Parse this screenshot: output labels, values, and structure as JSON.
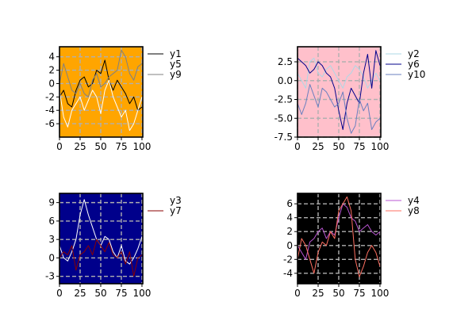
{
  "chart_data": [
    {
      "type": "line",
      "background": "#FFA500",
      "xlim": [
        0,
        101
      ],
      "ylim": [
        -8,
        5.5
      ],
      "xticks": [
        0,
        25,
        50,
        75,
        100
      ],
      "yticks": [
        -6,
        -4,
        -2,
        0,
        2,
        4
      ],
      "ytick_labels": [
        "-6",
        "-4",
        "-2",
        "0",
        "2",
        "4"
      ],
      "grid": true,
      "legend_position": "right",
      "series": [
        {
          "name": "y1",
          "color": "#000000",
          "x": [
            0,
            5,
            10,
            15,
            20,
            25,
            30,
            35,
            40,
            45,
            50,
            55,
            60,
            65,
            70,
            75,
            80,
            85,
            90,
            95,
            100
          ],
          "y": [
            -2,
            -1,
            -3,
            -3.5,
            -1,
            0.5,
            1,
            -0.5,
            0,
            2,
            1.5,
            3.5,
            0.5,
            -1,
            0.5,
            -0.5,
            -1.5,
            -3,
            -2,
            -4,
            -3.5
          ]
        },
        {
          "name": "y5",
          "color": "#ffffff",
          "x": [
            0,
            5,
            10,
            15,
            20,
            25,
            30,
            35,
            40,
            45,
            50,
            55,
            60,
            65,
            70,
            75,
            80,
            85,
            90,
            95,
            100
          ],
          "y": [
            -1,
            -5,
            -6.5,
            -4,
            -3,
            -2,
            -4,
            -2.5,
            -1,
            -2,
            -4.5,
            -1,
            0.5,
            -2,
            -3.5,
            -5,
            -4,
            -7,
            -6,
            -4,
            -2
          ]
        },
        {
          "name": "y9",
          "color": "#808080",
          "x": [
            0,
            5,
            10,
            15,
            20,
            25,
            30,
            35,
            40,
            45,
            50,
            55,
            60,
            65,
            70,
            75,
            80,
            85,
            90,
            95,
            100
          ],
          "y": [
            0,
            3,
            1,
            -1,
            -1.5,
            0,
            -1.5,
            -2,
            0.5,
            1.5,
            -0.5,
            0,
            1,
            1.5,
            2,
            5,
            4,
            1.5,
            0.5,
            2.5,
            3
          ]
        }
      ]
    },
    {
      "type": "line",
      "background": "#FFC0CB",
      "xlim": [
        0,
        101
      ],
      "ylim": [
        -7.5,
        4.5
      ],
      "xticks": [
        0,
        25,
        50,
        75,
        100
      ],
      "yticks": [
        -7.5,
        -5,
        -2.5,
        0,
        2.5
      ],
      "ytick_labels": [
        "-7.5",
        "-5.0",
        "-2.5",
        "0.0",
        "2.5"
      ],
      "grid": true,
      "legend_position": "right",
      "series": [
        {
          "name": "y2",
          "color": "#ADD8E6",
          "x": [
            0,
            5,
            10,
            15,
            20,
            25,
            30,
            35,
            40,
            45,
            50,
            55,
            60,
            65,
            70,
            75,
            80,
            85,
            90,
            95,
            100
          ],
          "y": [
            1,
            0,
            -1,
            2.5,
            3,
            1,
            0.5,
            1.5,
            2,
            1,
            0,
            -1,
            0.5,
            1,
            2,
            1.5,
            0.5,
            -1,
            0,
            1,
            0
          ]
        },
        {
          "name": "y6",
          "color": "#00008B",
          "x": [
            0,
            5,
            10,
            15,
            20,
            25,
            30,
            35,
            40,
            45,
            50,
            55,
            60,
            65,
            70,
            75,
            80,
            85,
            90,
            95,
            100
          ],
          "y": [
            3,
            2.5,
            2,
            1,
            1.5,
            2.5,
            2,
            1,
            0.5,
            -1,
            -4,
            -6.5,
            -3,
            -1,
            -2,
            -3,
            1,
            3.5,
            -1,
            4,
            2
          ]
        },
        {
          "name": "y10",
          "color": "#6A7FBF",
          "x": [
            0,
            5,
            10,
            15,
            20,
            25,
            30,
            35,
            40,
            45,
            50,
            55,
            60,
            65,
            70,
            75,
            80,
            85,
            90,
            95,
            100
          ],
          "y": [
            -3,
            -4.5,
            -3,
            -0.5,
            -2,
            -3.5,
            -1,
            -1.5,
            -2.5,
            -3.5,
            -3,
            -1.5,
            -5,
            -7,
            -6,
            -2.5,
            -4,
            -3,
            -6.5,
            -5.5,
            -5
          ]
        }
      ]
    },
    {
      "type": "line",
      "background": "#00008B",
      "xlim": [
        0,
        101
      ],
      "ylim": [
        -4.2,
        10.5
      ],
      "xticks": [
        0,
        25,
        50,
        75,
        100
      ],
      "yticks": [
        -3,
        0,
        3,
        6,
        9
      ],
      "ytick_labels": [
        "-3",
        "0",
        "3",
        "6",
        "9"
      ],
      "grid": true,
      "legend_position": "right",
      "series": [
        {
          "name": "y3",
          "color": "#ffffff",
          "x": [
            0,
            5,
            10,
            15,
            20,
            25,
            30,
            35,
            40,
            45,
            50,
            55,
            60,
            65,
            70,
            75,
            80,
            85,
            90,
            95,
            100
          ],
          "y": [
            2,
            0,
            -0.5,
            1,
            3,
            7,
            9.5,
            7,
            5,
            3,
            2,
            3.5,
            3,
            1,
            0,
            2,
            -0.5,
            -1,
            0,
            1.5,
            3.5
          ]
        },
        {
          "name": "y7",
          "color": "#8B0000",
          "x": [
            0,
            5,
            10,
            15,
            20,
            25,
            30,
            35,
            40,
            45,
            50,
            55,
            60,
            65,
            70,
            75,
            80,
            85,
            90,
            95,
            100
          ],
          "y": [
            0,
            1,
            0.5,
            2,
            -2,
            0.5,
            1,
            2,
            0.5,
            3,
            2,
            1,
            2.5,
            0.5,
            0,
            1,
            -1,
            1,
            -3,
            0,
            0.5
          ]
        }
      ]
    },
    {
      "type": "line",
      "background": "#000000",
      "xlim": [
        0,
        101
      ],
      "ylim": [
        -5.5,
        7.5
      ],
      "xticks": [
        0,
        25,
        50,
        75,
        100
      ],
      "yticks": [
        -4,
        -2,
        0,
        2,
        4,
        6
      ],
      "ytick_labels": [
        "-4",
        "-2",
        "0",
        "2",
        "4",
        "6"
      ],
      "grid": true,
      "legend_position": "right",
      "series": [
        {
          "name": "y4",
          "color": "#BA55D3",
          "x": [
            0,
            5,
            10,
            15,
            20,
            25,
            30,
            35,
            40,
            45,
            50,
            55,
            60,
            65,
            70,
            75,
            80,
            85,
            90,
            95,
            100
          ],
          "y": [
            0,
            -1,
            -2,
            0.5,
            1,
            2,
            2.5,
            1,
            2,
            1.5,
            4,
            6,
            5.5,
            4,
            3.5,
            2,
            2.5,
            3,
            2,
            1.5,
            2
          ]
        },
        {
          "name": "y8",
          "color": "#FF6F61",
          "x": [
            0,
            5,
            10,
            15,
            20,
            25,
            30,
            35,
            40,
            45,
            50,
            55,
            60,
            65,
            70,
            75,
            80,
            85,
            90,
            95,
            100
          ],
          "y": [
            -2,
            1,
            0,
            -2,
            -4,
            -1,
            0.5,
            0,
            2,
            1,
            5,
            6,
            7,
            5,
            -2,
            -4.5,
            -3,
            -1,
            0,
            -1,
            -3
          ]
        }
      ]
    }
  ]
}
